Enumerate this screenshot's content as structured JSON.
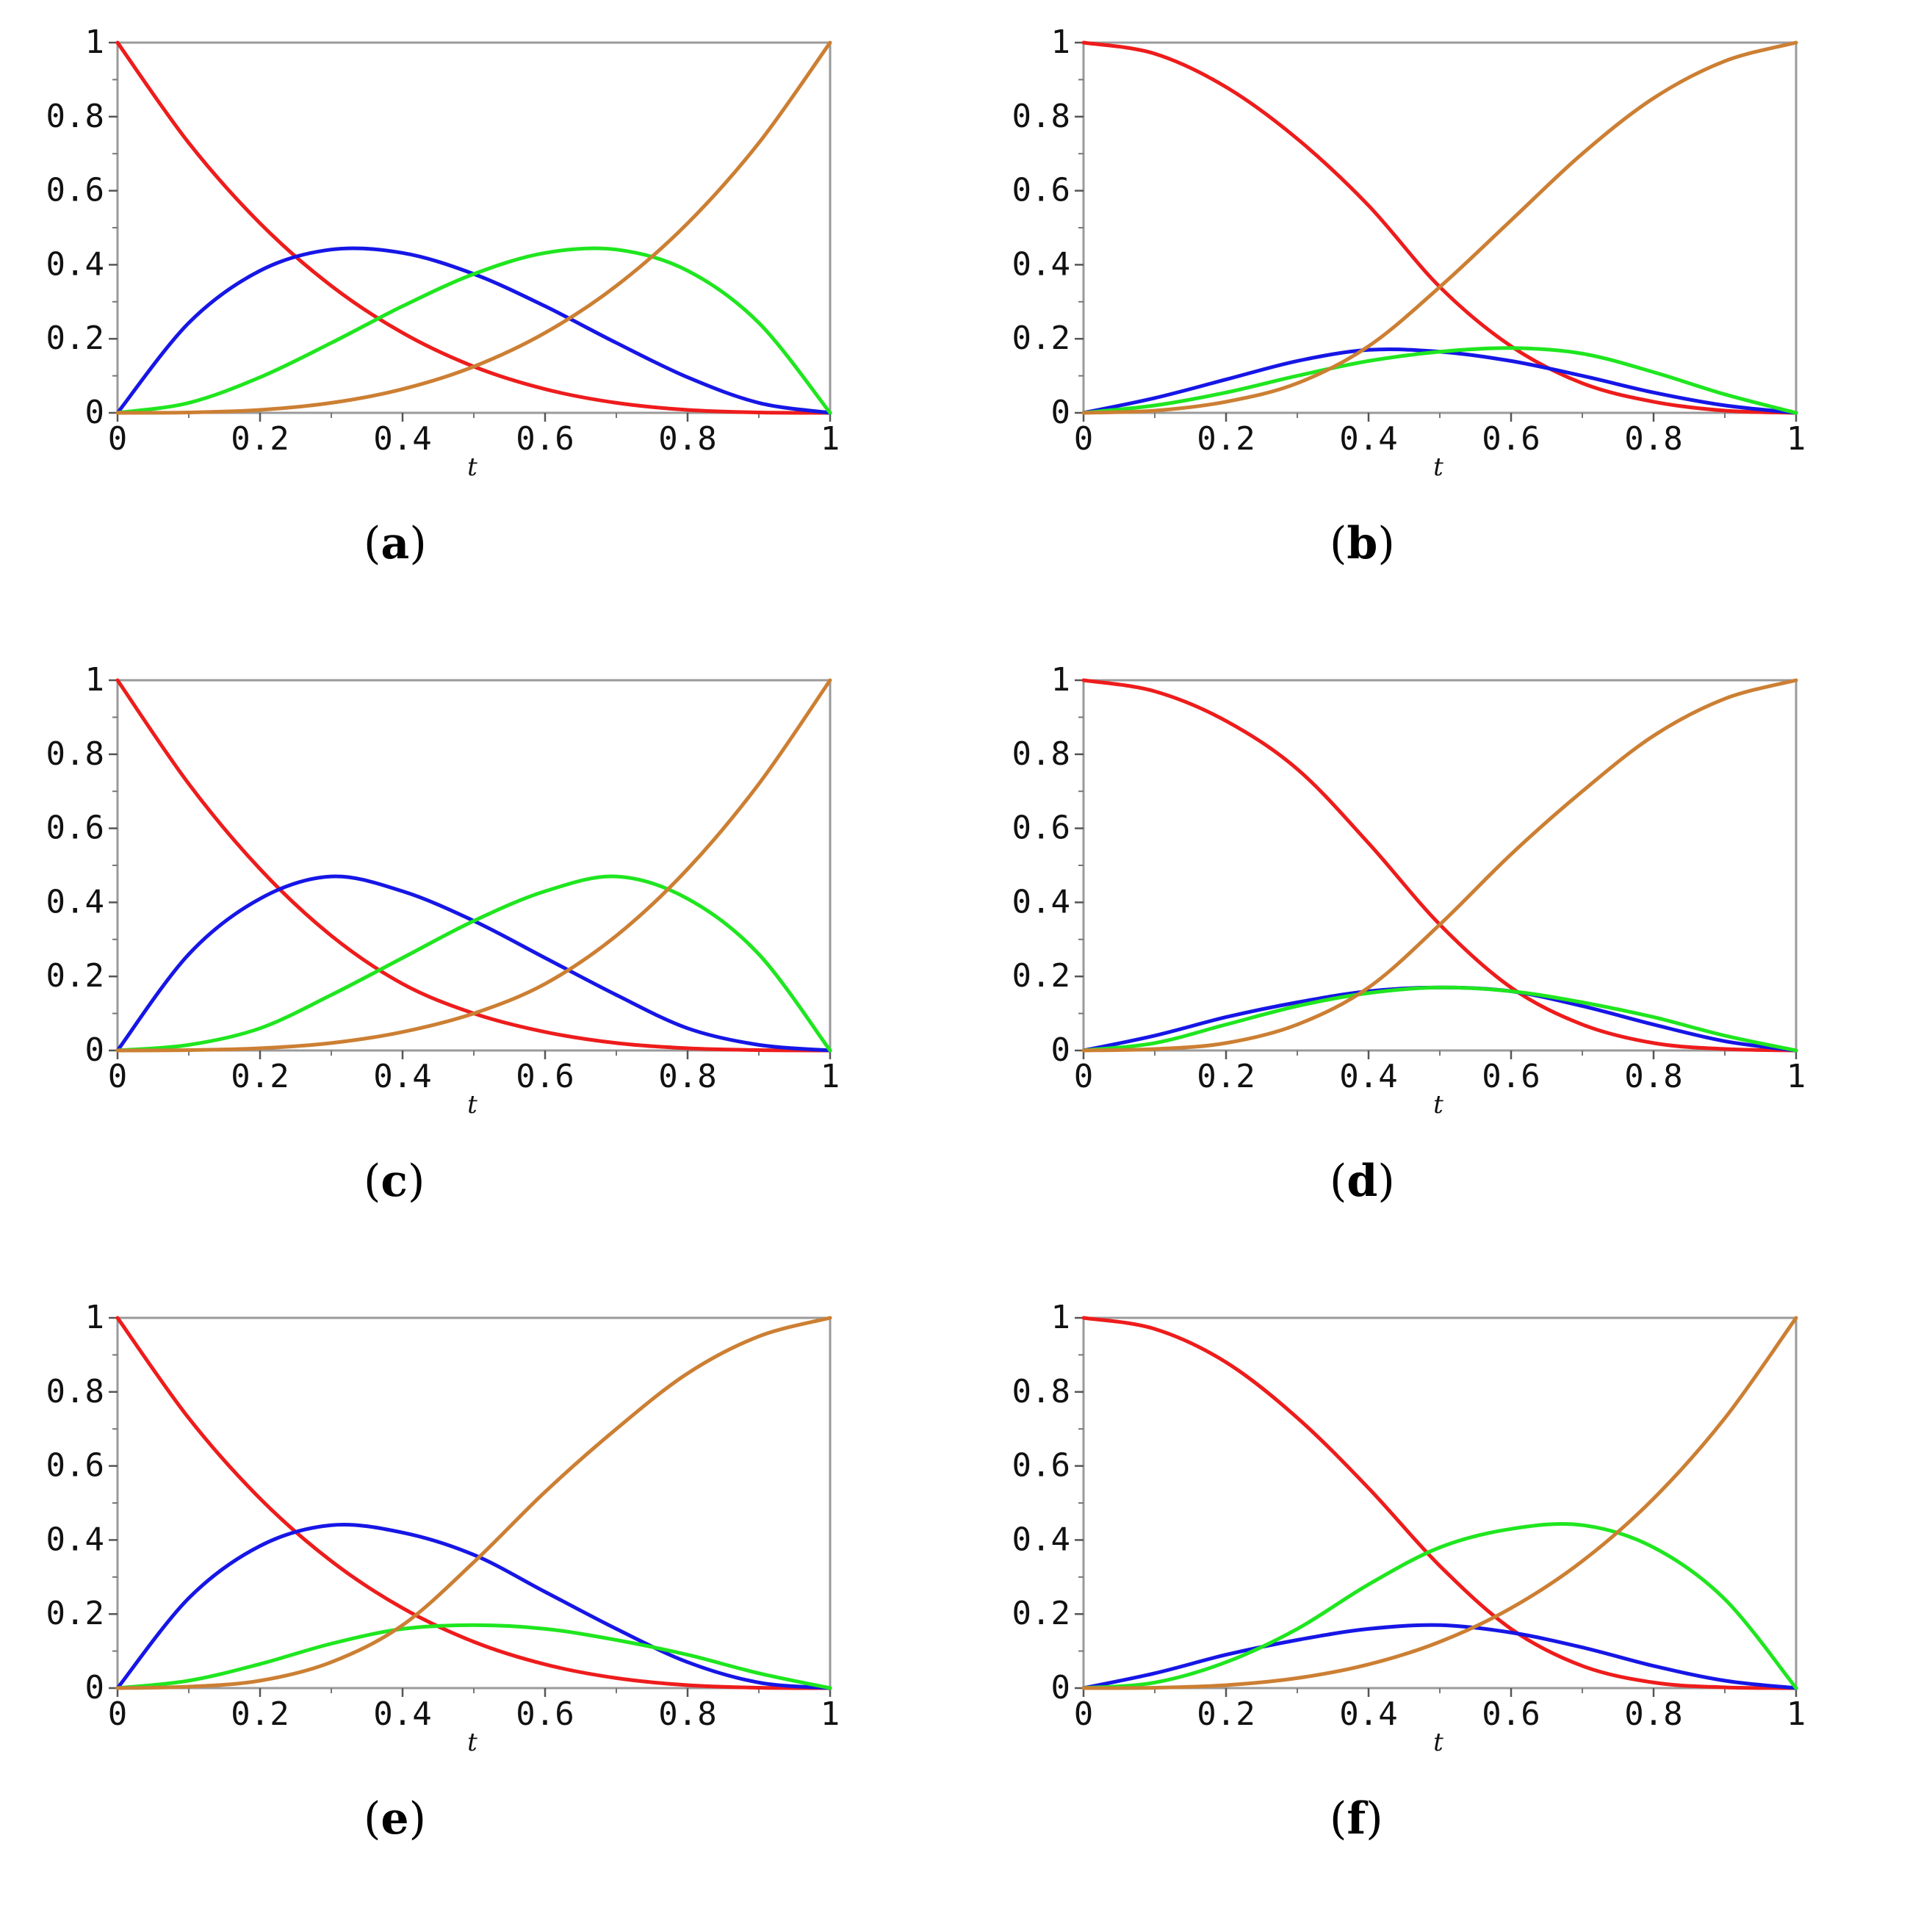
{
  "figure": {
    "x_label": "t",
    "x_ticks": [
      "0",
      "0.2",
      "0.4",
      "0.6",
      "0.8",
      "1"
    ],
    "y_ticks": [
      "0",
      "0.2",
      "0.4",
      "0.6",
      "0.8",
      "1"
    ],
    "series_colors": {
      "red": "#ee1c1c",
      "blue": "#1616e6",
      "green": "#1fe61f",
      "orange": "#cc7f33"
    }
  },
  "chart_data": [
    {
      "type": "line",
      "label": "a",
      "xlabel": "t",
      "ylabel": "",
      "xlim": [
        0,
        1
      ],
      "ylim": [
        0,
        1
      ],
      "x": [
        0,
        0.1,
        0.2,
        0.3,
        0.4,
        0.5,
        0.6,
        0.7,
        0.8,
        0.9,
        1
      ],
      "series": [
        {
          "name": "red",
          "color": "#ee1c1c",
          "values": [
            1,
            0.729,
            0.512,
            0.343,
            0.216,
            0.125,
            0.064,
            0.027,
            0.008,
            0.001,
            0
          ]
        },
        {
          "name": "blue",
          "color": "#1616e6",
          "values": [
            0,
            0.243,
            0.384,
            0.441,
            0.432,
            0.375,
            0.288,
            0.189,
            0.096,
            0.027,
            0
          ]
        },
        {
          "name": "green",
          "color": "#1fe61f",
          "values": [
            0,
            0.027,
            0.096,
            0.189,
            0.288,
            0.375,
            0.432,
            0.441,
            0.384,
            0.243,
            0
          ]
        },
        {
          "name": "orange",
          "color": "#cc7f33",
          "values": [
            0,
            0.001,
            0.008,
            0.027,
            0.064,
            0.125,
            0.216,
            0.343,
            0.512,
            0.729,
            1
          ]
        }
      ]
    },
    {
      "type": "line",
      "label": "b",
      "xlabel": "t",
      "ylabel": "",
      "xlim": [
        0,
        1
      ],
      "ylim": [
        0,
        1
      ],
      "x": [
        0,
        0.1,
        0.2,
        0.3,
        0.4,
        0.5,
        0.6,
        0.7,
        0.8,
        0.9,
        1
      ],
      "series": [
        {
          "name": "red",
          "color": "#ee1c1c",
          "values": [
            1,
            0.97,
            0.88,
            0.74,
            0.56,
            0.34,
            0.18,
            0.08,
            0.03,
            0.006,
            0
          ]
        },
        {
          "name": "blue",
          "color": "#1616e6",
          "values": [
            0,
            0.04,
            0.09,
            0.14,
            0.17,
            0.165,
            0.14,
            0.1,
            0.055,
            0.02,
            0
          ]
        },
        {
          "name": "green",
          "color": "#1fe61f",
          "values": [
            0,
            0.02,
            0.055,
            0.1,
            0.14,
            0.165,
            0.175,
            0.16,
            0.11,
            0.05,
            0
          ]
        },
        {
          "name": "orange",
          "color": "#cc7f33",
          "values": [
            0,
            0.006,
            0.03,
            0.08,
            0.18,
            0.34,
            0.52,
            0.7,
            0.85,
            0.95,
            1
          ]
        }
      ]
    },
    {
      "type": "line",
      "label": "c",
      "xlabel": "t",
      "ylabel": "",
      "xlim": [
        0,
        1
      ],
      "ylim": [
        0,
        1
      ],
      "x": [
        0,
        0.1,
        0.2,
        0.3,
        0.4,
        0.5,
        0.6,
        0.7,
        0.8,
        0.9,
        1
      ],
      "series": [
        {
          "name": "red",
          "color": "#ee1c1c",
          "values": [
            1,
            0.72,
            0.49,
            0.31,
            0.18,
            0.1,
            0.05,
            0.02,
            0.006,
            0.001,
            0
          ]
        },
        {
          "name": "blue",
          "color": "#1616e6",
          "values": [
            0,
            0.26,
            0.41,
            0.47,
            0.43,
            0.35,
            0.25,
            0.15,
            0.06,
            0.015,
            0
          ]
        },
        {
          "name": "green",
          "color": "#1fe61f",
          "values": [
            0,
            0.015,
            0.06,
            0.15,
            0.25,
            0.35,
            0.43,
            0.47,
            0.41,
            0.26,
            0
          ]
        },
        {
          "name": "orange",
          "color": "#cc7f33",
          "values": [
            0,
            0.001,
            0.006,
            0.02,
            0.05,
            0.1,
            0.18,
            0.31,
            0.49,
            0.72,
            1
          ]
        }
      ]
    },
    {
      "type": "line",
      "label": "d",
      "xlabel": "t",
      "ylabel": "",
      "xlim": [
        0,
        1
      ],
      "ylim": [
        0,
        1
      ],
      "x": [
        0,
        0.1,
        0.2,
        0.3,
        0.4,
        0.5,
        0.6,
        0.7,
        0.8,
        0.9,
        1
      ],
      "series": [
        {
          "name": "red",
          "color": "#ee1c1c",
          "values": [
            1,
            0.97,
            0.89,
            0.76,
            0.56,
            0.34,
            0.17,
            0.07,
            0.02,
            0.004,
            0
          ]
        },
        {
          "name": "blue",
          "color": "#1616e6",
          "values": [
            0,
            0.04,
            0.09,
            0.13,
            0.16,
            0.17,
            0.16,
            0.12,
            0.07,
            0.025,
            0
          ]
        },
        {
          "name": "green",
          "color": "#1fe61f",
          "values": [
            0,
            0.02,
            0.07,
            0.12,
            0.155,
            0.17,
            0.16,
            0.13,
            0.09,
            0.04,
            0
          ]
        },
        {
          "name": "orange",
          "color": "#cc7f33",
          "values": [
            0,
            0.004,
            0.02,
            0.07,
            0.17,
            0.34,
            0.53,
            0.7,
            0.85,
            0.95,
            1
          ]
        }
      ]
    },
    {
      "type": "line",
      "label": "e",
      "xlabel": "t",
      "ylabel": "",
      "xlim": [
        0,
        1
      ],
      "ylim": [
        0,
        1
      ],
      "x": [
        0,
        0.1,
        0.2,
        0.3,
        0.4,
        0.5,
        0.6,
        0.7,
        0.8,
        0.9,
        1
      ],
      "series": [
        {
          "name": "red",
          "color": "#ee1c1c",
          "values": [
            1,
            0.729,
            0.512,
            0.343,
            0.216,
            0.125,
            0.064,
            0.027,
            0.008,
            0.001,
            0
          ]
        },
        {
          "name": "blue",
          "color": "#1616e6",
          "values": [
            0,
            0.243,
            0.384,
            0.44,
            0.42,
            0.36,
            0.26,
            0.16,
            0.07,
            0.015,
            0
          ]
        },
        {
          "name": "green",
          "color": "#1fe61f",
          "values": [
            0,
            0.02,
            0.065,
            0.12,
            0.16,
            0.17,
            0.16,
            0.13,
            0.09,
            0.04,
            0
          ]
        },
        {
          "name": "orange",
          "color": "#cc7f33",
          "values": [
            0,
            0.004,
            0.02,
            0.07,
            0.17,
            0.34,
            0.53,
            0.7,
            0.85,
            0.95,
            1
          ]
        }
      ]
    },
    {
      "type": "line",
      "label": "f",
      "xlabel": "t",
      "ylabel": "",
      "xlim": [
        0,
        1
      ],
      "ylim": [
        0,
        1
      ],
      "x": [
        0,
        0.1,
        0.2,
        0.3,
        0.4,
        0.5,
        0.6,
        0.7,
        0.8,
        0.9,
        1
      ],
      "series": [
        {
          "name": "red",
          "color": "#ee1c1c",
          "values": [
            1,
            0.97,
            0.88,
            0.73,
            0.54,
            0.33,
            0.16,
            0.06,
            0.015,
            0.002,
            0
          ]
        },
        {
          "name": "blue",
          "color": "#1616e6",
          "values": [
            0,
            0.04,
            0.09,
            0.13,
            0.16,
            0.17,
            0.15,
            0.11,
            0.06,
            0.02,
            0
          ]
        },
        {
          "name": "green",
          "color": "#1fe61f",
          "values": [
            0,
            0.015,
            0.07,
            0.16,
            0.28,
            0.38,
            0.43,
            0.44,
            0.38,
            0.24,
            0
          ]
        },
        {
          "name": "orange",
          "color": "#cc7f33",
          "values": [
            0,
            0.001,
            0.008,
            0.027,
            0.064,
            0.125,
            0.216,
            0.343,
            0.512,
            0.729,
            1
          ]
        }
      ]
    }
  ],
  "captions": [
    "a",
    "b",
    "c",
    "d",
    "e",
    "f"
  ]
}
